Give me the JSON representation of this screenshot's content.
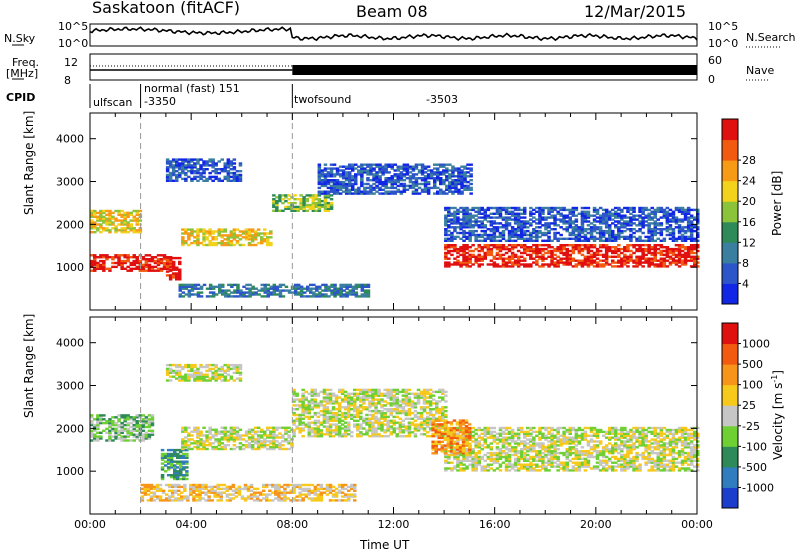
{
  "header": {
    "station": "Saskatoon (fitACF)",
    "beam": "Beam 08",
    "date": "12/Mar/2015"
  },
  "noise_panel": {
    "left_label": "N.Sky",
    "left_ticks": [
      "10^5",
      "10^0"
    ],
    "right_ticks": [
      "10^5",
      "10^0"
    ],
    "right_label": "N.Search"
  },
  "freq_panel": {
    "left_label_1": "Freq.",
    "left_label_2": "[MHz]",
    "left_ticks": [
      "12",
      "8"
    ],
    "right_ticks": [
      "60",
      "0"
    ],
    "right_label": "Nave"
  },
  "cpid": {
    "label": "CPID",
    "segments": [
      {
        "name": "ulfscan",
        "start_hour": 0,
        "end_hour": 2
      },
      {
        "name": "normal (fast) 151",
        "start_hour": 2,
        "end_hour": 8
      },
      {
        "name": "twofsound",
        "start_hour": 8,
        "end_hour": 24
      }
    ],
    "ids": [
      "-3350",
      "-3503"
    ]
  },
  "chart_data": [
    {
      "type": "heatmap",
      "name": "power",
      "ylabel": "Slant Range [km]",
      "xlabel": "",
      "ylim": [
        0,
        4600
      ],
      "xlim": [
        0,
        24
      ],
      "yticks": [
        "1000",
        "2000",
        "3000",
        "4000"
      ],
      "colorbar": {
        "label": "Power [dB]",
        "ticks": [
          "4",
          "8",
          "12",
          "16",
          "20",
          "24",
          "28"
        ],
        "colors": [
          "#1226e6",
          "#2b55c8",
          "#3a7fa0",
          "#2f8a5a",
          "#8bc43a",
          "#f2d21a",
          "#f79a16",
          "#f25a10",
          "#e01010"
        ]
      },
      "echo_regions": [
        {
          "t0": 0.0,
          "t1": 3.2,
          "r0": 900,
          "r1": 1300,
          "level": 8
        },
        {
          "t0": 3.0,
          "t1": 3.6,
          "r0": 700,
          "r1": 1200,
          "level": 8
        },
        {
          "t0": 3.6,
          "t1": 7.2,
          "r0": 1500,
          "r1": 1900,
          "level": 5
        },
        {
          "t0": 7.2,
          "t1": 9.5,
          "r0": 2300,
          "r1": 2700,
          "level": 4
        },
        {
          "t0": 14.0,
          "t1": 24.0,
          "r0": 1000,
          "r1": 1500,
          "level": 8
        },
        {
          "t0": 0.0,
          "t1": 2.0,
          "r0": 1800,
          "r1": 2300,
          "level": 5
        },
        {
          "t0": 3.0,
          "t1": 6.0,
          "r0": 3000,
          "r1": 3500,
          "level": 1
        },
        {
          "t0": 9.0,
          "t1": 15.0,
          "r0": 2700,
          "r1": 3400,
          "level": 1
        },
        {
          "t0": 14.0,
          "t1": 24.0,
          "r0": 1600,
          "r1": 2400,
          "level": 1
        },
        {
          "t0": 3.5,
          "t1": 11.0,
          "r0": 300,
          "r1": 600,
          "level": 2
        }
      ]
    },
    {
      "type": "heatmap",
      "name": "velocity",
      "ylabel": "Slant Range [km]",
      "xlabel": "Time UT",
      "ylim": [
        0,
        4600
      ],
      "xlim": [
        0,
        24
      ],
      "xticks": [
        "00:00",
        "04:00",
        "08:00",
        "12:00",
        "16:00",
        "20:00",
        "00:00"
      ],
      "yticks": [
        "1000",
        "2000",
        "3000",
        "4000"
      ],
      "colorbar": {
        "label": "Velocity [m s",
        "label_superscript": "-1",
        "label_end": "]",
        "ticks": [
          "1000",
          "500",
          "100",
          "25",
          "-25",
          "-100",
          "-500",
          "-1000"
        ],
        "colors": [
          "#1c3ecc",
          "#2f7dbf",
          "#2e8a58",
          "#6fd034",
          "#c6c6c6",
          "#f7c91a",
          "#f7951a",
          "#f25a10",
          "#e01010"
        ]
      },
      "echo_regions": [
        {
          "t0": 0.0,
          "t1": 2.5,
          "r0": 1700,
          "r1": 2300,
          "level": 3
        },
        {
          "t0": 2.8,
          "t1": 3.8,
          "r0": 800,
          "r1": 1500,
          "level": 2
        },
        {
          "t0": 3.6,
          "t1": 8.0,
          "r0": 1500,
          "r1": 2000,
          "level": 4
        },
        {
          "t0": 8.0,
          "t1": 14.0,
          "r0": 1800,
          "r1": 2900,
          "level": 4
        },
        {
          "t0": 14.0,
          "t1": 24.0,
          "r0": 1000,
          "r1": 2000,
          "level": 4
        },
        {
          "t0": 13.5,
          "t1": 15.0,
          "r0": 1400,
          "r1": 2200,
          "level": 6
        },
        {
          "t0": 2.0,
          "t1": 10.5,
          "r0": 300,
          "r1": 700,
          "level": 5
        },
        {
          "t0": 3.0,
          "t1": 6.0,
          "r0": 3100,
          "r1": 3500,
          "level": 4
        }
      ]
    }
  ]
}
